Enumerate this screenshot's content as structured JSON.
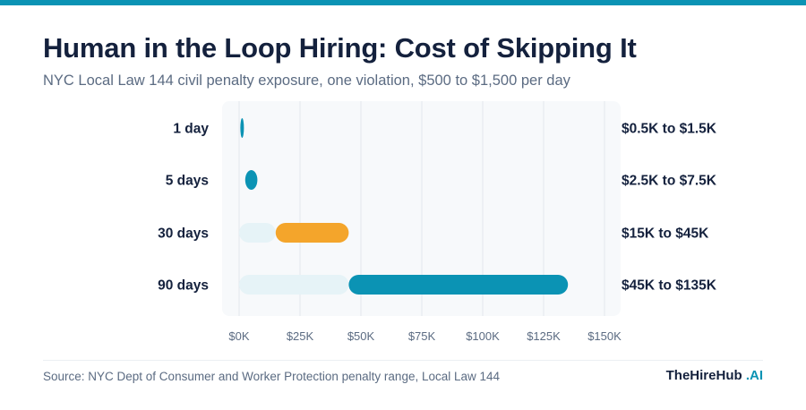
{
  "header": {
    "title": "Human in the Loop Hiring: Cost of Skipping It",
    "subtitle": "NYC Local Law 144 civil penalty exposure, one violation, $500 to $1,500 per day"
  },
  "footer": {
    "source": "Source: NYC Dept of Consumer and Worker Protection penalty range, Local Law 144",
    "brand_main": "TheHireHub",
    "brand_accent": ".AI"
  },
  "colors": {
    "background_panel": "#f7f9fb",
    "grid": "#e3e8ee",
    "ghost_bar": "#e6f3f7",
    "teal": "#0b93b4",
    "orange": "#f4a52b",
    "text_dark": "#14213d",
    "text_muted": "#5b6b82"
  },
  "chart_data": {
    "type": "range-bar",
    "xlim": [
      0,
      150000
    ],
    "x_ticks": [
      0,
      25000,
      50000,
      75000,
      100000,
      125000,
      150000
    ],
    "x_tick_labels": [
      "$0K",
      "$25K",
      "$50K",
      "$75K",
      "$100K",
      "$125K",
      "$150K"
    ],
    "grid": true,
    "rows": [
      {
        "label": "1 day",
        "low": 500,
        "high": 1500,
        "range_label": "$0.5K to $1.5K",
        "color": "#0b93b4"
      },
      {
        "label": "5 days",
        "low": 2500,
        "high": 7500,
        "range_label": "$2.5K to $7.5K",
        "color": "#0b93b4"
      },
      {
        "label": "30 days",
        "low": 15000,
        "high": 45000,
        "range_label": "$15K to $45K",
        "color": "#f4a52b"
      },
      {
        "label": "90 days",
        "low": 45000,
        "high": 135000,
        "range_label": "$45K to $135K",
        "color": "#0b93b4"
      }
    ]
  }
}
